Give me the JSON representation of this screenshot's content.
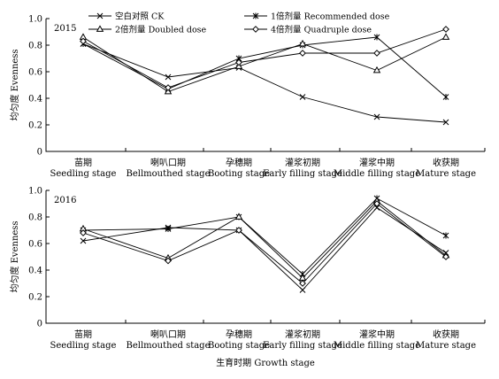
{
  "chart_data": [
    {
      "type": "line",
      "year_label": "2015",
      "ylabel": "均匀度 Evenness",
      "ylim": [
        0,
        1.0
      ],
      "yticks": [
        "0",
        "0.2",
        "0.4",
        "0.6",
        "0.8",
        "1.0"
      ],
      "categories": [
        {
          "zh": "苗期",
          "en": "Seedling stage"
        },
        {
          "zh": "喇叭口期",
          "en": "Bellmouthed stage"
        },
        {
          "zh": "孕穗期",
          "en": "Booting stage"
        },
        {
          "zh": "灌浆初期",
          "en": "Early filling stage"
        },
        {
          "zh": "灌浆中期",
          "en": "Middle filling stage"
        },
        {
          "zh": "收获期",
          "en": "Mature stage"
        }
      ],
      "legend": [
        {
          "label": "空白对照 CK",
          "marker": "x"
        },
        {
          "label": "1倍剂量 Recommended dose",
          "marker": "star"
        },
        {
          "label": "2倍剂量 Doubled dose",
          "marker": "triangle"
        },
        {
          "label": "4倍剂量 Quadruple dose",
          "marker": "diamond"
        }
      ],
      "series": [
        {
          "name": "空白对照 CK",
          "marker": "x",
          "values": [
            0.81,
            0.56,
            0.63,
            0.41,
            0.26,
            0.22
          ]
        },
        {
          "name": "1倍剂量 Recommended dose",
          "marker": "star",
          "values": [
            0.81,
            0.47,
            0.7,
            0.8,
            0.86,
            0.41
          ]
        },
        {
          "name": "2倍剂量 Doubled dose",
          "marker": "triangle",
          "values": [
            0.86,
            0.45,
            0.64,
            0.81,
            0.61,
            0.86
          ]
        },
        {
          "name": "4倍剂量 Quadruple dose",
          "marker": "diamond",
          "values": [
            0.83,
            0.48,
            0.67,
            0.74,
            0.74,
            0.92
          ]
        }
      ]
    },
    {
      "type": "line",
      "year_label": "2016",
      "ylabel": "均匀度 Evenness",
      "ylim": [
        0,
        1.0
      ],
      "yticks": [
        "0",
        "0.2",
        "0.4",
        "0.6",
        "0.8",
        "1.0"
      ],
      "categories": [
        {
          "zh": "苗期",
          "en": "Seedling stage"
        },
        {
          "zh": "喇叭口期",
          "en": "Bellmouthed stage"
        },
        {
          "zh": "孕穗期",
          "en": "Booting stage"
        },
        {
          "zh": "灌浆初期",
          "en": "Early filling stage"
        },
        {
          "zh": "灌浆中期",
          "en": "Middle filling stage"
        },
        {
          "zh": "收获期",
          "en": "Mature stage"
        }
      ],
      "series": [
        {
          "name": "空白对照 CK",
          "marker": "x",
          "values": [
            0.62,
            0.72,
            0.7,
            0.25,
            0.87,
            0.53
          ]
        },
        {
          "name": "1倍剂量 Recommended dose",
          "marker": "star",
          "values": [
            0.7,
            0.71,
            0.8,
            0.37,
            0.94,
            0.66
          ]
        },
        {
          "name": "2倍剂量 Doubled dose",
          "marker": "triangle",
          "values": [
            0.71,
            0.49,
            0.8,
            0.34,
            0.92,
            0.51
          ]
        },
        {
          "name": "4倍剂量 Quadruple dose",
          "marker": "diamond",
          "values": [
            0.68,
            0.47,
            0.7,
            0.3,
            0.9,
            0.5
          ]
        }
      ]
    }
  ],
  "xlabel": "生育时期 Growth stage"
}
